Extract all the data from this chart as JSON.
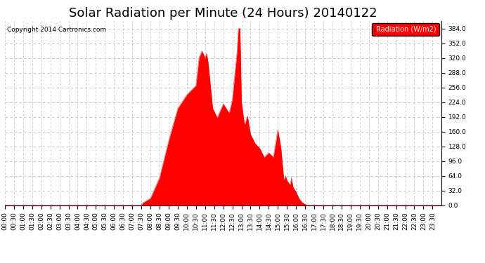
{
  "title": "Solar Radiation per Minute (24 Hours) 20140122",
  "copyright_text": "Copyright 2014 Cartronics.com",
  "legend_label": "Radiation (W/m2)",
  "ylim": [
    0.0,
    400.0
  ],
  "yticks": [
    0.0,
    32.0,
    64.0,
    96.0,
    128.0,
    160.0,
    192.0,
    224.0,
    256.0,
    288.0,
    320.0,
    352.0,
    384.0
  ],
  "fill_color": "#FF0000",
  "background_color": "#FFFFFF",
  "grid_color": "#BBBBBB",
  "dashed_zero_color": "#FF0000",
  "title_fontsize": 13,
  "tick_fontsize": 6.5,
  "total_minutes": 1440
}
